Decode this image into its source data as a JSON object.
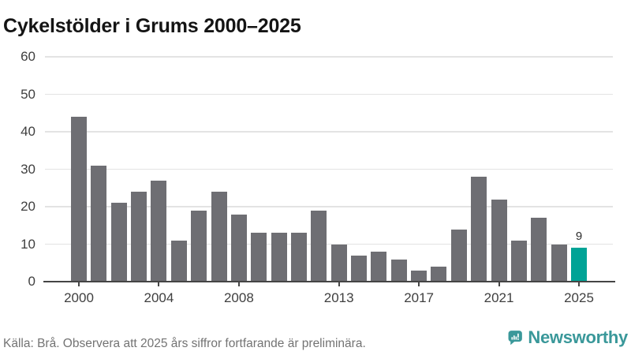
{
  "chart": {
    "title": "Cykelstölder i Grums 2000–2025"
  },
  "chart_data": {
    "type": "bar",
    "title": "Cykelstölder i Grums 2000–2025",
    "categories": [
      2000,
      2001,
      2002,
      2003,
      2004,
      2005,
      2006,
      2007,
      2008,
      2009,
      2010,
      2011,
      2012,
      2013,
      2014,
      2015,
      2016,
      2017,
      2018,
      2019,
      2020,
      2021,
      2022,
      2023,
      2024,
      2025
    ],
    "values": [
      44,
      31,
      21,
      24,
      27,
      11,
      19,
      24,
      18,
      13,
      13,
      13,
      19,
      10,
      7,
      8,
      6,
      3,
      4,
      14,
      28,
      22,
      11,
      17,
      10,
      9
    ],
    "xlabel": "",
    "ylabel": "",
    "ylim": [
      0,
      60
    ],
    "grid": true,
    "legend": "none",
    "y_ticks": [
      0,
      10,
      20,
      30,
      40,
      50,
      60
    ],
    "x_ticks": [
      2000,
      2004,
      2008,
      2013,
      2017,
      2021,
      2025
    ],
    "bar_color": "#6e6e73",
    "highlight": {
      "year": 2025,
      "value": 9,
      "label": "9",
      "color": "#00a396"
    }
  },
  "footer": {
    "source": "Källa: Brå. Observera att 2025 års siffror fortfarande är preliminära.",
    "logo_text": "Newsworthy"
  },
  "colors": {
    "bar": "#6e6e73",
    "highlight": "#00a396",
    "gridline": "#e3e3e3",
    "axis": "#454545",
    "tick_label": "#3f3f3f",
    "logo_teal": "#3a989a"
  }
}
